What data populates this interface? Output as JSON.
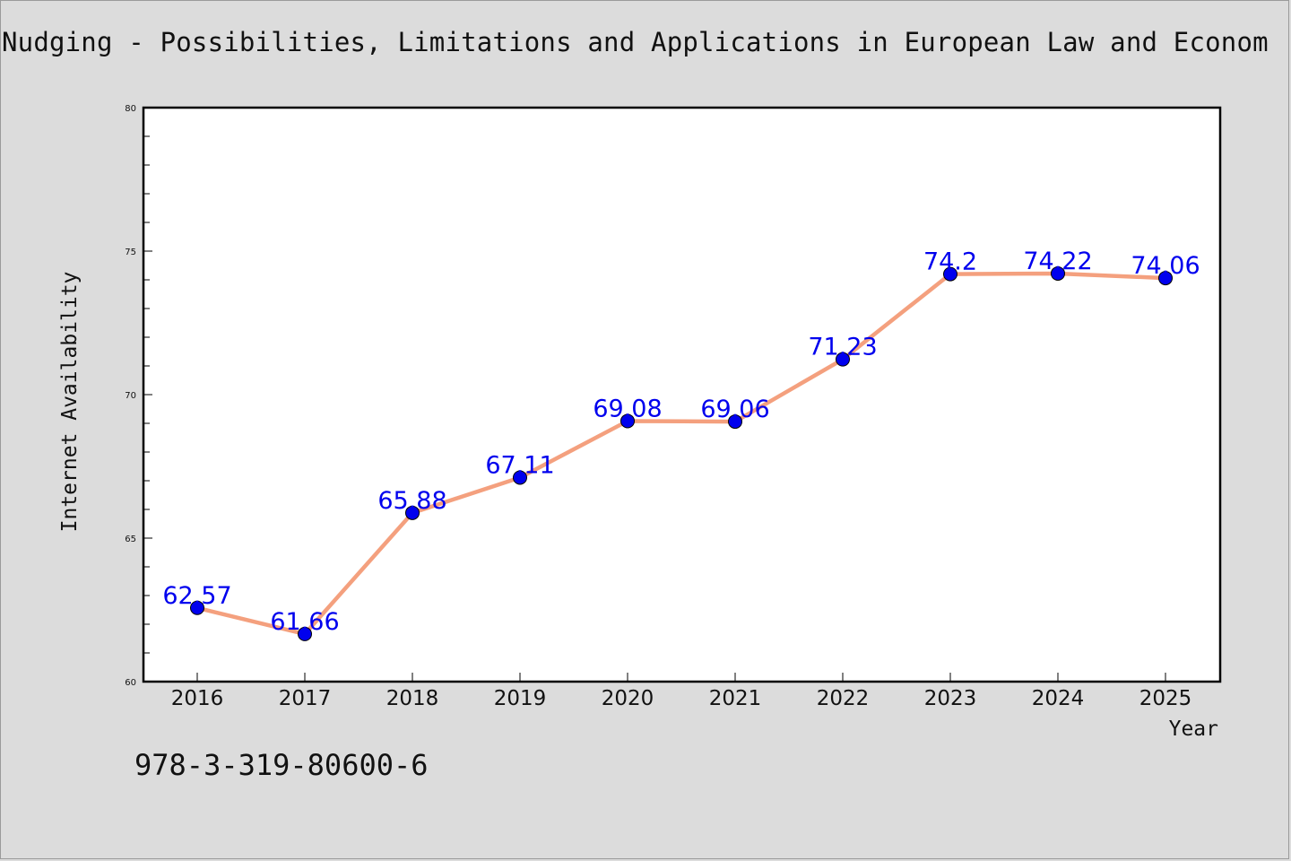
{
  "chart_data": {
    "type": "line",
    "title": "Nudging - Possibilities, Limitations and Applications in European Law and Econom",
    "xlabel": "Year",
    "ylabel": "Internet Availability",
    "categories": [
      "2016",
      "2017",
      "2018",
      "2019",
      "2020",
      "2021",
      "2022",
      "2023",
      "2024",
      "2025"
    ],
    "series": [
      {
        "values": [
          62.57,
          61.66,
          65.88,
          67.11,
          69.08,
          69.06,
          71.23,
          74.2,
          74.22,
          74.06
        ],
        "labels": [
          "62.57",
          "61.66",
          "65.88",
          "67.11",
          "69.08",
          "69.06",
          "71.23",
          "74.2",
          "74.22",
          "74.06"
        ],
        "line_color": "#f4a07e",
        "marker_color": "#0000ee",
        "label_color": "#0000ee"
      }
    ],
    "ylim": [
      60,
      80
    ],
    "yticks": [
      "60",
      "65",
      "70",
      "75",
      "80"
    ],
    "grid": false,
    "legend": "none"
  },
  "footer": {
    "isbn": "978-3-319-80600-6"
  },
  "colors": {
    "background": "#dcdcdc",
    "plot_background": "#ffffff",
    "text": "#111111"
  }
}
